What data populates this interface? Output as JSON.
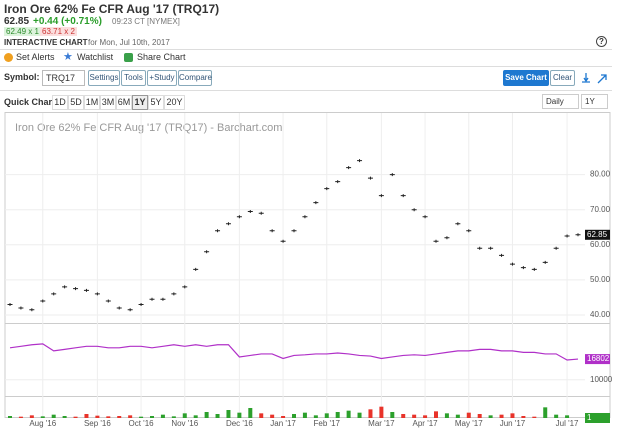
{
  "header": {
    "title": "Iron Ore 62% Fe CFR Aug '17 (TRQ17)",
    "last": "62.85",
    "change": "+0.44 (+0.71%)",
    "time": "09:23 CT [NYMEX]",
    "bid": "62.49 x 1",
    "ask": "63.71 x 2",
    "chart_label": "INTERACTIVE CHART",
    "date": "for Mon, Jul 10th, 2017",
    "help": "?"
  },
  "actions": [
    "Set Alerts",
    "Watchlist",
    "Share Chart"
  ],
  "toolbar": {
    "symbol_label": "Symbol:",
    "symbol": "TRQ17",
    "buttons": [
      "Settings",
      "Tools",
      "+Study",
      "Compare"
    ],
    "save": "Save Chart",
    "clear": "Clear"
  },
  "quick_chart": {
    "label": "Quick Chart:",
    "ranges": [
      "1D",
      "5D",
      "1M",
      "3M",
      "6M",
      "1Y",
      "5Y",
      "20Y"
    ],
    "selected": "1Y",
    "interval": "Daily",
    "period": "1Y"
  },
  "chart_data": [
    {
      "type": "dash",
      "title": "Iron Ore 62% Fe CFR Aug '17 (TRQ17) - Barchart.com",
      "color": "#222",
      "categories": [
        null,
        null,
        null,
        "Aug '16",
        null,
        null,
        null,
        null,
        "Sep '16",
        null,
        null,
        null,
        "Oct '16",
        null,
        null,
        null,
        "Nov '16",
        null,
        null,
        null,
        null,
        "Dec '16",
        null,
        null,
        null,
        "Jan '17",
        null,
        null,
        null,
        "Feb '17",
        null,
        null,
        null,
        null,
        "Mar '17",
        null,
        null,
        null,
        "Apr '17",
        null,
        null,
        null,
        "May '17",
        null,
        null,
        null,
        "Jun '17",
        null,
        null,
        null,
        null,
        "Jul '17",
        null
      ],
      "values": [
        43,
        42,
        41.5,
        44,
        46,
        48,
        47.5,
        47,
        46,
        44,
        42,
        41.5,
        43,
        44.5,
        44.5,
        46,
        48,
        53,
        58,
        64,
        66,
        68,
        69.5,
        69,
        64,
        61,
        64,
        68,
        72,
        76,
        78,
        82,
        84,
        79,
        74,
        80,
        74,
        70,
        68,
        61,
        62,
        66,
        64,
        59,
        59,
        57,
        54.5,
        53.5,
        53,
        55,
        59,
        62.5,
        62.85
      ],
      "ylim": [
        38,
        91
      ],
      "yticks": [
        {
          "value": 40,
          "label": "40.00"
        },
        {
          "value": 50,
          "label": "50.00"
        },
        {
          "value": 60,
          "label": "60.00"
        },
        {
          "value": 70,
          "label": "70.00"
        },
        {
          "value": 80,
          "label": "80.00"
        }
      ],
      "grid": true
    },
    {
      "type": "line",
      "color": "#b030c8",
      "values": [
        20500,
        21000,
        21500,
        21800,
        19500,
        20000,
        20500,
        21000,
        21000,
        20500,
        20500,
        21000,
        21000,
        20500,
        21000,
        21500,
        21000,
        21500,
        21000,
        21500,
        21500,
        17500,
        18000,
        18500,
        18500,
        17000,
        18000,
        18200,
        18500,
        18500,
        18800,
        18500,
        18000,
        17800,
        17000,
        17500,
        18000,
        18200,
        18000,
        18500,
        19000,
        19500,
        19500,
        20000,
        20000,
        19500,
        19500,
        19000,
        19000,
        18500,
        18500,
        16500,
        16802
      ],
      "ylim": [
        5000,
        28000
      ],
      "yticks": [
        10000
      ],
      "grid": true
    },
    {
      "type": "bar",
      "up_color": "#2ca02c",
      "down_color": "#e8332a",
      "values": [
        300,
        200,
        400,
        250,
        500,
        300,
        200,
        600,
        350,
        250,
        300,
        400,
        200,
        300,
        500,
        250,
        700,
        400,
        900,
        600,
        1200,
        800,
        1500,
        700,
        500,
        300,
        600,
        800,
        400,
        700,
        900,
        1100,
        800,
        1300,
        1700,
        900,
        600,
        500,
        400,
        1000,
        700,
        500,
        800,
        600,
        400,
        500,
        700,
        300,
        200,
        1600,
        500,
        400,
        1
      ],
      "ylim": [
        0,
        3000
      ]
    }
  ]
}
